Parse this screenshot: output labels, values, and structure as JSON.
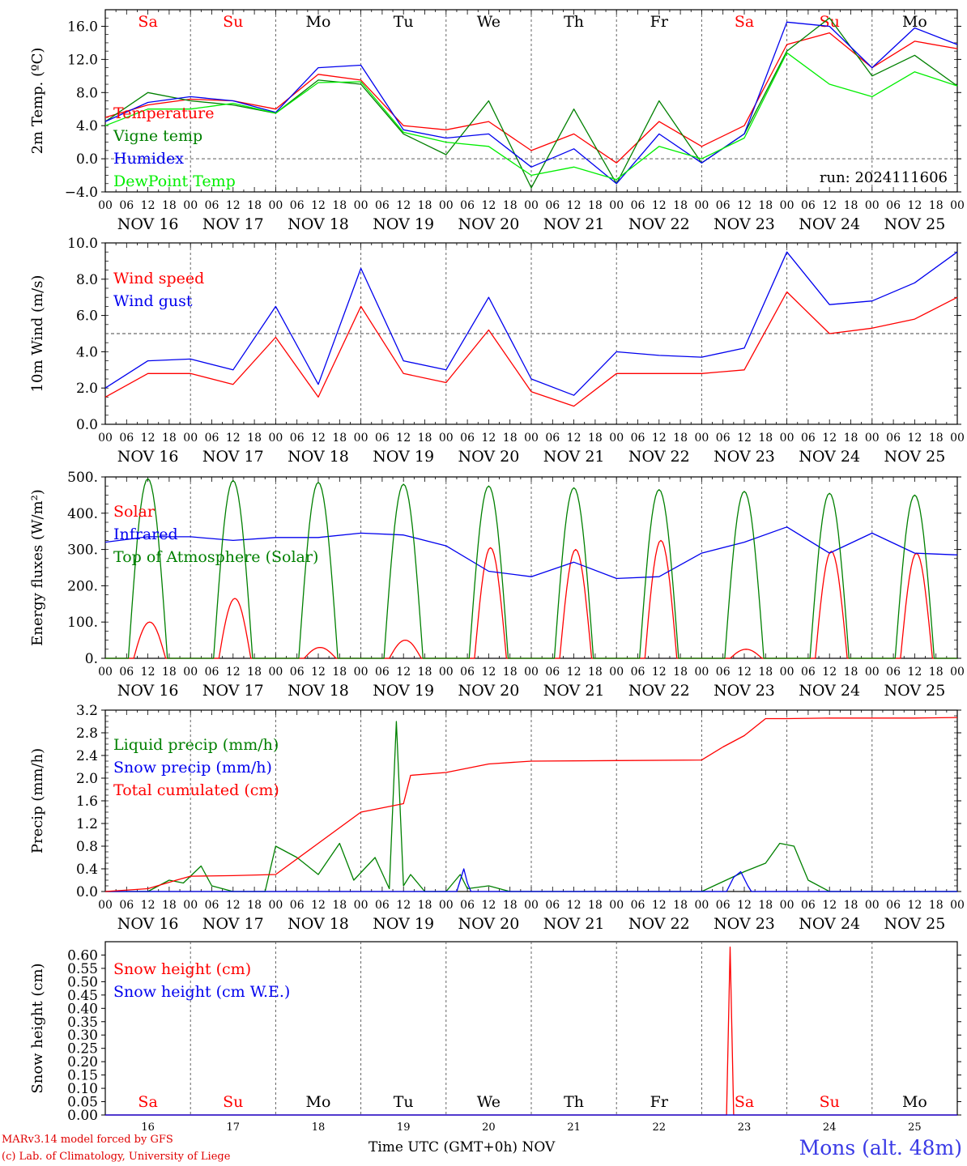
{
  "chart_data": [
    {
      "type": "line",
      "ylabel": "2m Temp. (ºC)",
      "ylim": [
        -4.0,
        18.0
      ],
      "yticks": [
        -4.0,
        0.0,
        4.0,
        8.0,
        12.0,
        16.0
      ],
      "yticklabels": [
        "−4.0",
        "0.0",
        "4.0",
        "8.0",
        "12.0",
        "16.0"
      ],
      "reference_lines": [
        0.0
      ],
      "day_names": [
        "Sa",
        "Su",
        "Mo",
        "Tu",
        "We",
        "Th",
        "Fr",
        "Sa",
        "Su",
        "Mo"
      ],
      "weekend_color": "#ff0000",
      "date_labels": [
        "NOV 16",
        "NOV 17",
        "NOV 18",
        "NOV 19",
        "NOV 20",
        "NOV 21",
        "NOV 22",
        "NOV 23",
        "NOV 24",
        "NOV 25"
      ],
      "hour_labels": [
        "00",
        "06",
        "12",
        "18"
      ],
      "annotation": "run: 2024111606",
      "x_hours": [
        0,
        12,
        24,
        36,
        48,
        60,
        72,
        84,
        96,
        108,
        120,
        132,
        144,
        156,
        168,
        180,
        192,
        204,
        216,
        228,
        240
      ],
      "series": [
        {
          "name": "Temperature",
          "color": "#ff0000",
          "values": [
            5.0,
            6.5,
            7.2,
            7.0,
            6.0,
            10.2,
            9.5,
            4.0,
            3.5,
            4.5,
            1.0,
            3.0,
            -0.5,
            4.5,
            1.5,
            4.0,
            13.8,
            15.2,
            11.0,
            14.2,
            13.3
          ]
        },
        {
          "name": "Vigne temp",
          "color": "#008000",
          "values": [
            4.5,
            8.0,
            7.0,
            6.5,
            5.5,
            9.5,
            9.0,
            3.0,
            0.5,
            7.0,
            -3.5,
            6.0,
            -3.0,
            7.0,
            -0.5,
            3.0,
            13.0,
            17.0,
            10.0,
            12.5,
            8.8
          ]
        },
        {
          "name": "Humidex",
          "color": "#0000ee",
          "values": [
            4.5,
            6.8,
            7.5,
            7.0,
            5.6,
            11.0,
            11.3,
            3.5,
            2.5,
            3.0,
            -1.0,
            1.2,
            -3.0,
            3.0,
            -0.5,
            3.0,
            16.5,
            16.0,
            11.0,
            15.8,
            13.8
          ]
        },
        {
          "name": "DewPoint Temp",
          "color": "#00ee00",
          "values": [
            4.0,
            6.0,
            6.0,
            6.7,
            5.5,
            9.2,
            9.3,
            3.2,
            2.0,
            1.5,
            -2.0,
            -1.0,
            -2.5,
            1.5,
            0.0,
            2.5,
            12.8,
            9.0,
            7.5,
            10.5,
            8.8
          ]
        }
      ]
    },
    {
      "type": "line",
      "ylabel": "10m Wind (m/s)",
      "ylim": [
        0.0,
        10.0
      ],
      "yticks": [
        0.0,
        2.0,
        4.0,
        6.0,
        8.0,
        10.0
      ],
      "yticklabels": [
        "0.0",
        "2.0",
        "4.0",
        "6.0",
        "8.0",
        "10.0"
      ],
      "reference_lines": [
        5.0
      ],
      "date_labels": [
        "NOV 16",
        "NOV 17",
        "NOV 18",
        "NOV 19",
        "NOV 20",
        "NOV 21",
        "NOV 22",
        "NOV 23",
        "NOV 24",
        "NOV 25"
      ],
      "hour_labels": [
        "00",
        "06",
        "12",
        "18"
      ],
      "x_hours": [
        0,
        12,
        24,
        36,
        48,
        60,
        72,
        84,
        96,
        108,
        120,
        132,
        144,
        156,
        168,
        180,
        192,
        204,
        216,
        228,
        240
      ],
      "series": [
        {
          "name": "Wind speed",
          "color": "#ff0000",
          "values": [
            1.5,
            2.8,
            2.8,
            2.2,
            4.8,
            1.5,
            6.5,
            2.8,
            2.3,
            5.2,
            1.8,
            1.0,
            2.8,
            2.8,
            2.8,
            3.0,
            7.3,
            5.0,
            5.3,
            5.8,
            7.0
          ]
        },
        {
          "name": "Wind gust",
          "color": "#0000ee",
          "values": [
            2.0,
            3.5,
            3.6,
            3.0,
            6.5,
            2.2,
            8.6,
            3.5,
            3.0,
            7.0,
            2.5,
            1.6,
            4.0,
            3.8,
            3.7,
            4.2,
            9.5,
            6.6,
            6.8,
            7.8,
            9.5
          ]
        }
      ]
    },
    {
      "type": "line",
      "ylabel": "Energy fluxes (W/m²)",
      "ylim": [
        0,
        500
      ],
      "yticks": [
        0,
        100,
        200,
        300,
        400,
        500
      ],
      "yticklabels": [
        "0.",
        "100.",
        "200.",
        "300.",
        "400.",
        "500."
      ],
      "date_labels": [
        "NOV 16",
        "NOV 17",
        "NOV 18",
        "NOV 19",
        "NOV 20",
        "NOV 21",
        "NOV 22",
        "NOV 23",
        "NOV 24",
        "NOV 25"
      ],
      "hour_labels": [
        "00",
        "06",
        "12",
        "18"
      ],
      "solar_peaks": [
        100,
        165,
        30,
        50,
        305,
        300,
        325,
        25,
        295,
        290
      ],
      "toa_peaks": [
        495,
        490,
        485,
        480,
        475,
        470,
        465,
        460,
        455,
        450
      ],
      "series": [
        {
          "name": "Solar",
          "color": "#ff0000",
          "values": []
        },
        {
          "name": "Infrared",
          "color": "#0000ee",
          "x_hours": [
            0,
            12,
            24,
            36,
            48,
            60,
            72,
            84,
            96,
            108,
            120,
            132,
            144,
            156,
            168,
            180,
            192,
            204,
            216,
            228,
            240
          ],
          "values": [
            320,
            335,
            335,
            325,
            333,
            333,
            345,
            340,
            310,
            240,
            225,
            265,
            220,
            225,
            290,
            320,
            362,
            290,
            345,
            290,
            285
          ]
        },
        {
          "name": "Top of Atmosphere (Solar)",
          "color": "#008000",
          "values": []
        }
      ]
    },
    {
      "type": "line",
      "ylabel": "Precip (mm/h)",
      "ylim": [
        0.0,
        3.2
      ],
      "yticks": [
        0.0,
        0.4,
        0.8,
        1.2,
        1.6,
        2.0,
        2.4,
        2.8,
        3.2
      ],
      "yticklabels": [
        "0.0",
        "0.4",
        "0.8",
        "1.2",
        "1.6",
        "2.0",
        "2.4",
        "2.8",
        "3.2"
      ],
      "date_labels": [
        "NOV 16",
        "NOV 17",
        "NOV 18",
        "NOV 19",
        "NOV 20",
        "NOV 21",
        "NOV 22",
        "NOV 23",
        "NOV 24",
        "NOV 25"
      ],
      "hour_labels": [
        "00",
        "06",
        "12",
        "18"
      ],
      "series": [
        {
          "name": "Liquid precip (mm/h)",
          "color": "#008000",
          "x_hours": [
            0,
            12,
            18,
            22,
            27,
            30,
            36,
            45,
            48,
            54,
            60,
            66,
            70,
            76,
            80,
            82,
            84,
            86,
            90,
            96,
            100,
            102,
            108,
            114,
            120,
            150,
            162,
            168,
            180,
            186,
            190,
            194,
            198,
            204,
            240
          ],
          "values": [
            0,
            0,
            0.2,
            0.15,
            0.45,
            0.1,
            0,
            0,
            0.8,
            0.6,
            0.3,
            0.85,
            0.2,
            0.6,
            0.05,
            3.0,
            0.1,
            0.3,
            0,
            0,
            0.3,
            0.05,
            0.1,
            0,
            0,
            0,
            0,
            0,
            0.35,
            0.5,
            0.85,
            0.8,
            0.2,
            0,
            0
          ]
        },
        {
          "name": "Snow precip (mm/h)",
          "color": "#0000ee",
          "x_hours": [
            0,
            99,
            100,
            101,
            102,
            103,
            175,
            177,
            179,
            181,
            182,
            240
          ],
          "values": [
            0,
            0,
            0.2,
            0.4,
            0.15,
            0,
            0,
            0.25,
            0.35,
            0.1,
            0,
            0
          ]
        },
        {
          "name": "Total cumulated (cm)",
          "color": "#ff0000",
          "x_hours": [
            0,
            12,
            20,
            24,
            36,
            48,
            60,
            72,
            84,
            86,
            96,
            108,
            120,
            168,
            174,
            180,
            186,
            192,
            204,
            216,
            228,
            240
          ],
          "values": [
            0,
            0.05,
            0.2,
            0.27,
            0.28,
            0.3,
            0.85,
            1.4,
            1.55,
            2.05,
            2.1,
            2.25,
            2.3,
            2.32,
            2.55,
            2.75,
            3.05,
            3.05,
            3.06,
            3.06,
            3.06,
            3.07
          ]
        }
      ]
    },
    {
      "type": "line",
      "ylabel": "Snow height (cm)",
      "ylim": [
        0.0,
        0.65
      ],
      "yticks": [
        0.0,
        0.05,
        0.1,
        0.15,
        0.2,
        0.25,
        0.3,
        0.35,
        0.4,
        0.45,
        0.5,
        0.55,
        0.6
      ],
      "yticklabels": [
        "0.00",
        "0.05",
        "0.10",
        "0.15",
        "0.20",
        "0.25",
        "0.30",
        "0.35",
        "0.40",
        "0.45",
        "0.50",
        "0.55",
        "0.60"
      ],
      "day_names": [
        "Sa",
        "Su",
        "Mo",
        "Tu",
        "We",
        "Th",
        "Fr",
        "Sa",
        "Su",
        "Mo"
      ],
      "day_numbers": [
        "16",
        "17",
        "18",
        "19",
        "20",
        "21",
        "22",
        "23",
        "24",
        "25"
      ],
      "xlabel": "Time UTC (GMT+0h) NOV",
      "series": [
        {
          "name": "Snow height (cm)",
          "color": "#ff0000",
          "x_hours": [
            0,
            175,
            176,
            177,
            240
          ],
          "values": [
            0,
            0,
            0.63,
            0,
            0
          ]
        },
        {
          "name": "Snow height (cm W.E.)",
          "color": "#0000ee",
          "x_hours": [
            0,
            240
          ],
          "values": [
            0,
            0
          ]
        }
      ]
    }
  ],
  "footer": {
    "credit_line1": "MARv3.14 model forced by GFS",
    "credit_line2": "(c) Lab. of Climatology, University of Liege",
    "xlabel": "Time UTC (GMT+0h) NOV",
    "station": "Mons (alt. 48m)"
  }
}
